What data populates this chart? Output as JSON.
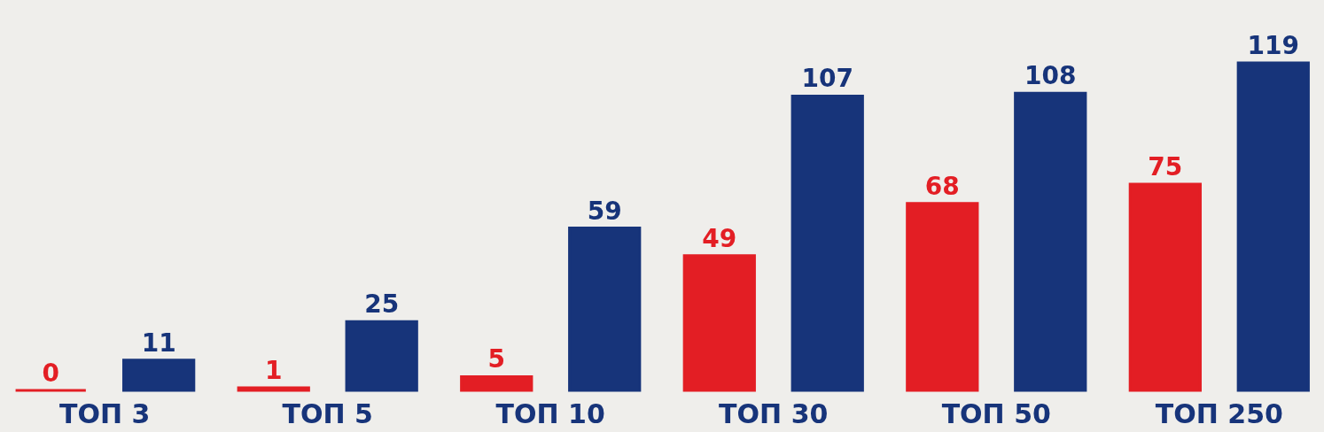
{
  "chart_data": {
    "type": "bar",
    "categories": [
      "ТОП 3",
      "ТОП 5",
      "ТОП 10",
      "ТОП 30",
      "ТОП 50",
      "ТОП 250"
    ],
    "series": [
      {
        "color": "#e31e24",
        "values": [
          0,
          1,
          5,
          49,
          68,
          75
        ]
      },
      {
        "color": "#17347a",
        "values": [
          11,
          25,
          59,
          107,
          108,
          119
        ]
      }
    ],
    "data_labels": true,
    "grid": false,
    "legend": false
  }
}
